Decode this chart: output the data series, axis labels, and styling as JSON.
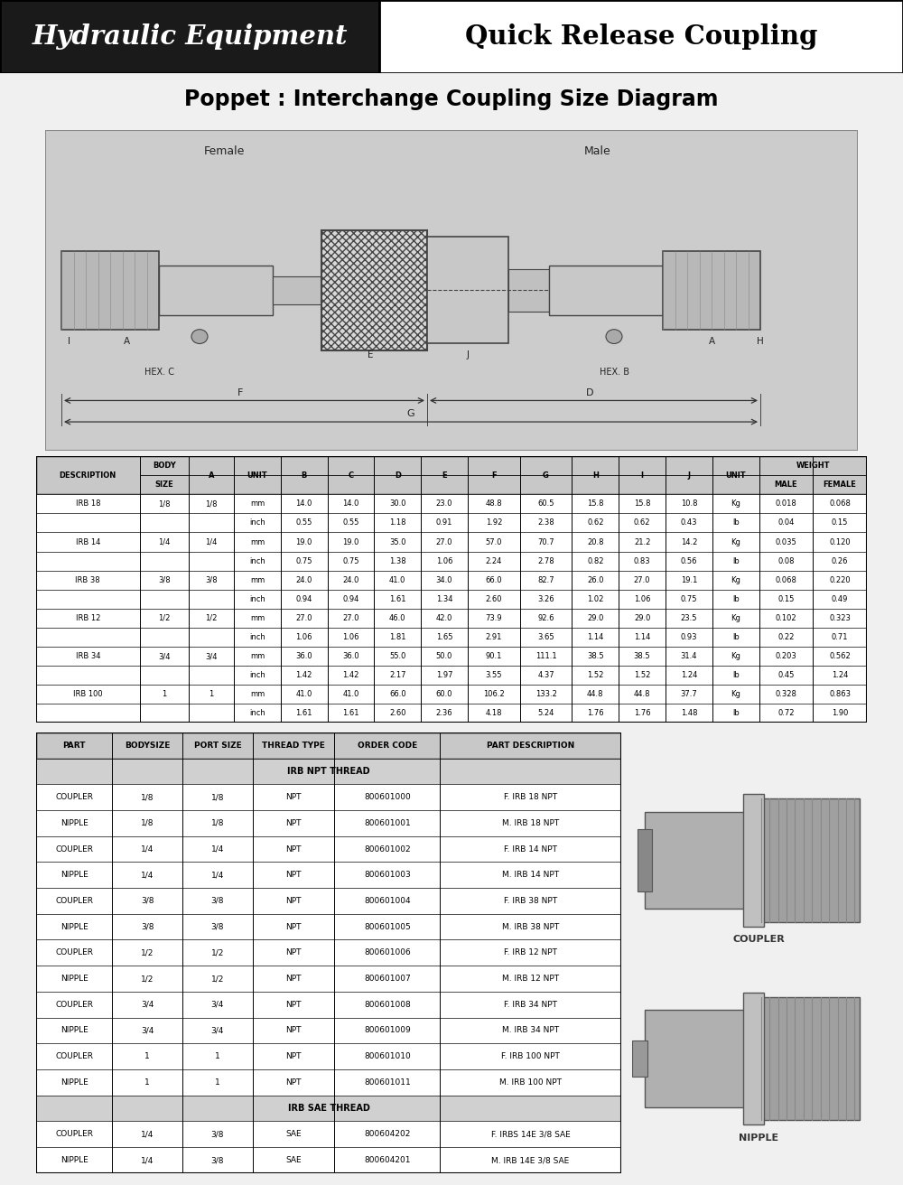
{
  "title": "Poppet : Interchange Coupling Size Diagram",
  "header_left": "Hydraulic Equipment",
  "header_right": "Quick Release Coupling",
  "header_left_bg": "#1a1a1a",
  "header_left_fg": "#ffffff",
  "header_right_bg": "#ffffff",
  "header_right_fg": "#000000",
  "table1_data": [
    [
      "IRB 18",
      "1/8",
      "1/8",
      "mm",
      "14.0",
      "14.0",
      "30.0",
      "23.0",
      "48.8",
      "60.5",
      "15.8",
      "15.8",
      "10.8",
      "Kg",
      "0.018",
      "0.068"
    ],
    [
      "",
      "",
      "",
      "inch",
      "0.55",
      "0.55",
      "1.18",
      "0.91",
      "1.92",
      "2.38",
      "0.62",
      "0.62",
      "0.43",
      "lb",
      "0.04",
      "0.15"
    ],
    [
      "IRB 14",
      "1/4",
      "1/4",
      "mm",
      "19.0",
      "19.0",
      "35.0",
      "27.0",
      "57.0",
      "70.7",
      "20.8",
      "21.2",
      "14.2",
      "Kg",
      "0.035",
      "0.120"
    ],
    [
      "",
      "",
      "",
      "inch",
      "0.75",
      "0.75",
      "1.38",
      "1.06",
      "2.24",
      "2.78",
      "0.82",
      "0.83",
      "0.56",
      "lb",
      "0.08",
      "0.26"
    ],
    [
      "IRB 38",
      "3/8",
      "3/8",
      "mm",
      "24.0",
      "24.0",
      "41.0",
      "34.0",
      "66.0",
      "82.7",
      "26.0",
      "27.0",
      "19.1",
      "Kg",
      "0.068",
      "0.220"
    ],
    [
      "",
      "",
      "",
      "inch",
      "0.94",
      "0.94",
      "1.61",
      "1.34",
      "2.60",
      "3.26",
      "1.02",
      "1.06",
      "0.75",
      "lb",
      "0.15",
      "0.49"
    ],
    [
      "IRB 12",
      "1/2",
      "1/2",
      "mm",
      "27.0",
      "27.0",
      "46.0",
      "42.0",
      "73.9",
      "92.6",
      "29.0",
      "29.0",
      "23.5",
      "Kg",
      "0.102",
      "0.323"
    ],
    [
      "",
      "",
      "",
      "inch",
      "1.06",
      "1.06",
      "1.81",
      "1.65",
      "2.91",
      "3.65",
      "1.14",
      "1.14",
      "0.93",
      "lb",
      "0.22",
      "0.71"
    ],
    [
      "IRB 34",
      "3/4",
      "3/4",
      "mm",
      "36.0",
      "36.0",
      "55.0",
      "50.0",
      "90.1",
      "111.1",
      "38.5",
      "38.5",
      "31.4",
      "Kg",
      "0.203",
      "0.562"
    ],
    [
      "",
      "",
      "",
      "inch",
      "1.42",
      "1.42",
      "2.17",
      "1.97",
      "3.55",
      "4.37",
      "1.52",
      "1.52",
      "1.24",
      "lb",
      "0.45",
      "1.24"
    ],
    [
      "IRB 100",
      "1",
      "1",
      "mm",
      "41.0",
      "41.0",
      "66.0",
      "60.0",
      "106.2",
      "133.2",
      "44.8",
      "44.8",
      "37.7",
      "Kg",
      "0.328",
      "0.863"
    ],
    [
      "",
      "",
      "",
      "inch",
      "1.61",
      "1.61",
      "2.60",
      "2.36",
      "4.18",
      "5.24",
      "1.76",
      "1.76",
      "1.48",
      "lb",
      "0.72",
      "1.90"
    ]
  ],
  "table2_headers": [
    "PART",
    "BODYSIZE",
    "PORT SIZE",
    "THREAD TYPE",
    "ORDER CODE",
    "PART DESCRIPTION"
  ],
  "table2_data": [
    [
      "IRB NPT THREAD",
      null,
      null,
      null,
      null,
      null
    ],
    [
      "COUPLER",
      "1/8",
      "1/8",
      "NPT",
      "800601000",
      "F. IRB 18 NPT"
    ],
    [
      "NIPPLE",
      "1/8",
      "1/8",
      "NPT",
      "800601001",
      "M. IRB 18 NPT"
    ],
    [
      "COUPLER",
      "1/4",
      "1/4",
      "NPT",
      "800601002",
      "F. IRB 14 NPT"
    ],
    [
      "NIPPLE",
      "1/4",
      "1/4",
      "NPT",
      "800601003",
      "M. IRB 14 NPT"
    ],
    [
      "COUPLER",
      "3/8",
      "3/8",
      "NPT",
      "800601004",
      "F. IRB 38 NPT"
    ],
    [
      "NIPPLE",
      "3/8",
      "3/8",
      "NPT",
      "800601005",
      "M. IRB 38 NPT"
    ],
    [
      "COUPLER",
      "1/2",
      "1/2",
      "NPT",
      "800601006",
      "F. IRB 12 NPT"
    ],
    [
      "NIPPLE",
      "1/2",
      "1/2",
      "NPT",
      "800601007",
      "M. IRB 12 NPT"
    ],
    [
      "COUPLER",
      "3/4",
      "3/4",
      "NPT",
      "800601008",
      "F. IRB 34 NPT"
    ],
    [
      "NIPPLE",
      "3/4",
      "3/4",
      "NPT",
      "800601009",
      "M. IRB 34 NPT"
    ],
    [
      "COUPLER",
      "1",
      "1",
      "NPT",
      "800601010",
      "F. IRB 100 NPT"
    ],
    [
      "NIPPLE",
      "1",
      "1",
      "NPT",
      "800601011",
      "M. IRB 100 NPT"
    ],
    [
      "IRB SAE THREAD",
      null,
      null,
      null,
      null,
      null
    ],
    [
      "COUPLER",
      "1/4",
      "3/8",
      "SAE",
      "800604202",
      "F. IRBS 14E 3/8 SAE"
    ],
    [
      "NIPPLE",
      "1/4",
      "3/8",
      "SAE",
      "800604201",
      "M. IRB 14E 3/8 SAE"
    ]
  ],
  "bg_color": "#f0f0f0",
  "table_header_bg": "#c8c8c8",
  "table_row_bg": "#ffffff",
  "table_border": "#000000",
  "section_header_bg": "#d0d0d0"
}
